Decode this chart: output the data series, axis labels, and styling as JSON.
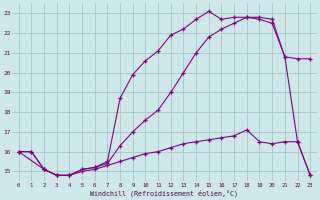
{
  "xlabel": "Windchill (Refroidissement éolien,°C)",
  "bg_color": "#cce8e8",
  "grid_color": "#aacccc",
  "line_color": "#880088",
  "xlim": [
    -0.5,
    23.5
  ],
  "ylim": [
    14.5,
    23.5
  ],
  "yticks": [
    15,
    16,
    17,
    18,
    19,
    20,
    21,
    22,
    23
  ],
  "xticks": [
    0,
    1,
    2,
    3,
    4,
    5,
    6,
    7,
    8,
    9,
    10,
    11,
    12,
    13,
    14,
    15,
    16,
    17,
    18,
    19,
    20,
    21,
    22,
    23
  ],
  "line1_x": [
    0,
    1,
    2,
    3,
    4,
    5,
    6,
    7,
    8,
    9,
    10,
    11,
    12,
    13,
    14,
    15,
    16,
    17,
    18,
    19,
    20,
    21,
    22,
    23
  ],
  "line1_y": [
    16.0,
    16.0,
    15.1,
    14.8,
    14.8,
    15.1,
    15.2,
    15.4,
    16.3,
    17.0,
    17.6,
    18.1,
    19.0,
    20.0,
    21.0,
    21.8,
    22.2,
    22.5,
    22.8,
    22.7,
    22.5,
    20.8,
    16.5,
    14.8
  ],
  "line2_x": [
    0,
    1,
    2,
    3,
    4,
    5,
    6,
    7,
    8,
    9,
    10,
    11,
    12,
    13,
    14,
    15,
    16,
    17,
    18,
    19,
    20,
    21,
    22,
    23
  ],
  "line2_y": [
    16.0,
    16.0,
    15.1,
    14.8,
    14.8,
    15.0,
    15.1,
    15.3,
    15.5,
    15.7,
    15.9,
    16.0,
    16.2,
    16.4,
    16.5,
    16.6,
    16.7,
    16.8,
    17.1,
    16.5,
    16.4,
    16.5,
    16.5,
    14.8
  ],
  "line3_x": [
    0,
    2,
    3,
    4,
    5,
    6,
    7,
    8,
    9,
    10,
    11,
    12,
    13,
    14,
    15,
    16,
    17,
    18,
    19,
    20,
    21,
    22,
    23
  ],
  "line3_y": [
    16.0,
    15.1,
    14.8,
    14.8,
    15.1,
    15.2,
    15.5,
    18.7,
    19.9,
    20.6,
    21.1,
    21.9,
    22.2,
    22.7,
    23.1,
    22.7,
    22.8,
    22.8,
    22.8,
    22.7,
    20.8,
    20.7,
    20.7
  ]
}
